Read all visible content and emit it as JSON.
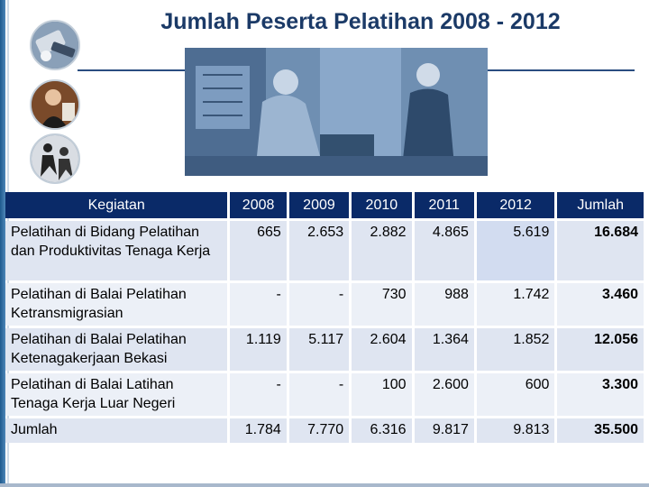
{
  "title": "Jumlah Peserta Pelatihan 2008 - 2012",
  "table": {
    "headers": [
      "Kegiatan",
      "2008",
      "2009",
      "2010",
      "2011",
      "2012",
      "Jumlah"
    ],
    "rows": [
      {
        "label": "Pelatihan di Bidang Pelatihan dan Produktivitas Tenaga Kerja",
        "values": [
          "665",
          "2.653",
          "2.882",
          "4.865",
          "5.619",
          "16.684"
        ]
      },
      {
        "label": "Pelatihan di Balai Pelatihan Ketransmigrasian",
        "values": [
          "-",
          "-",
          "730",
          "988",
          "1.742",
          "3.460"
        ]
      },
      {
        "label": "Pelatihan di Balai Pelatihan Ketenagakerjaan Bekasi",
        "values": [
          "1.119",
          "5.117",
          "2.604",
          "1.364",
          "1.852",
          "12.056"
        ]
      },
      {
        "label": "Pelatihan di Balai Latihan Tenaga Kerja Luar Negeri",
        "values": [
          "-",
          "-",
          "100",
          "2.600",
          "600",
          "3.300"
        ]
      },
      {
        "label": "Jumlah",
        "values": [
          "1.784",
          "7.770",
          "6.316",
          "9.817",
          "9.813",
          "35.500"
        ]
      }
    ]
  },
  "colors": {
    "title": "#1b3a67",
    "header_bg": "#0a2a68",
    "cell_bg": "#dfe5f1"
  },
  "images": {
    "thumb1": "business-photo",
    "thumb2": "people-photo",
    "thumb3": "figures-photo",
    "main": "worker-training-photo"
  }
}
